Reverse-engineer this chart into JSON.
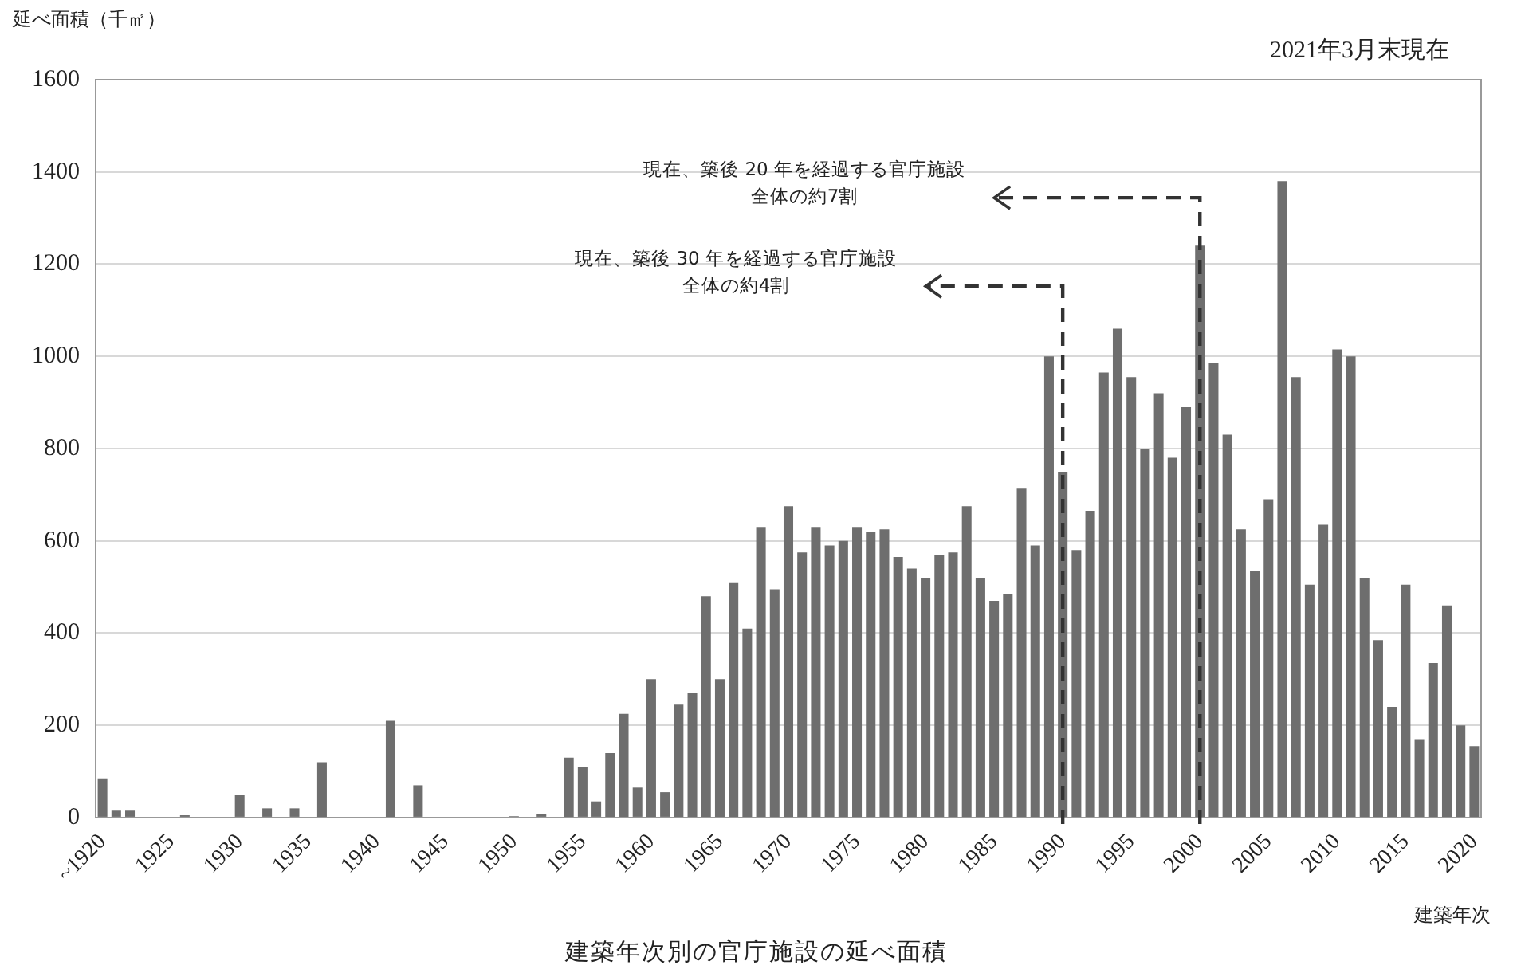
{
  "chart_data": {
    "type": "bar",
    "title": "建築年次別の官庁施設の延べ面積",
    "ylabel": "延べ面積（千㎡）",
    "xlabel": "建築年次",
    "categories": [
      "~1920",
      null,
      null,
      null,
      null,
      "1925",
      null,
      null,
      null,
      null,
      "1930",
      null,
      null,
      null,
      null,
      "1935",
      null,
      null,
      null,
      null,
      "1940",
      null,
      null,
      null,
      null,
      "1945",
      null,
      null,
      null,
      null,
      "1950",
      null,
      null,
      null,
      null,
      "1955",
      null,
      null,
      null,
      null,
      "1960",
      null,
      null,
      null,
      null,
      "1965",
      null,
      null,
      null,
      null,
      "1970",
      null,
      null,
      null,
      null,
      "1975",
      null,
      null,
      null,
      null,
      "1980",
      null,
      null,
      null,
      null,
      "1985",
      null,
      null,
      null,
      null,
      "1990",
      null,
      null,
      null,
      null,
      "1995",
      null,
      null,
      null,
      null,
      "2000",
      null,
      null,
      null,
      null,
      "2005",
      null,
      null,
      null,
      null,
      "2010",
      null,
      null,
      null,
      null,
      "2015",
      null,
      null,
      null,
      null,
      "2020"
    ],
    "values": [
      85,
      15,
      15,
      0,
      0,
      0,
      5,
      0,
      0,
      0,
      50,
      0,
      20,
      0,
      20,
      0,
      120,
      0,
      0,
      0,
      0,
      210,
      0,
      70,
      0,
      0,
      0,
      0,
      0,
      0,
      3,
      0,
      8,
      0,
      130,
      110,
      35,
      140,
      225,
      65,
      300,
      55,
      245,
      270,
      480,
      300,
      510,
      410,
      630,
      495,
      675,
      575,
      630,
      590,
      600,
      630,
      620,
      625,
      565,
      540,
      520,
      570,
      575,
      675,
      520,
      470,
      485,
      715,
      590,
      1000,
      750,
      580,
      665,
      965,
      1060,
      955,
      800,
      920,
      780,
      890,
      1240,
      985,
      830,
      625,
      535,
      690,
      1380,
      955,
      505,
      635,
      1015,
      1000,
      520,
      385,
      240,
      505,
      170,
      335,
      460,
      200,
      155
    ],
    "color": "#6e6e6e",
    "ylim": [
      0,
      1600
    ],
    "yticks": [
      0,
      200,
      400,
      600,
      800,
      1000,
      1200,
      1400,
      1600
    ],
    "grid": "y",
    "annotations": [
      "2021年3月末現在"
    ],
    "ref_lines": [
      {
        "axis": "x",
        "value": "1990",
        "label": "現在、築後 30 年を経過する官庁施設全体の約4割",
        "color": "#333333",
        "line_style": "dashed"
      },
      {
        "axis": "x",
        "value": "2000",
        "label": "現在、築後 20 年を経過する官庁施設全体の約7割",
        "color": "#333333",
        "line_style": "dashed"
      }
    ]
  }
}
